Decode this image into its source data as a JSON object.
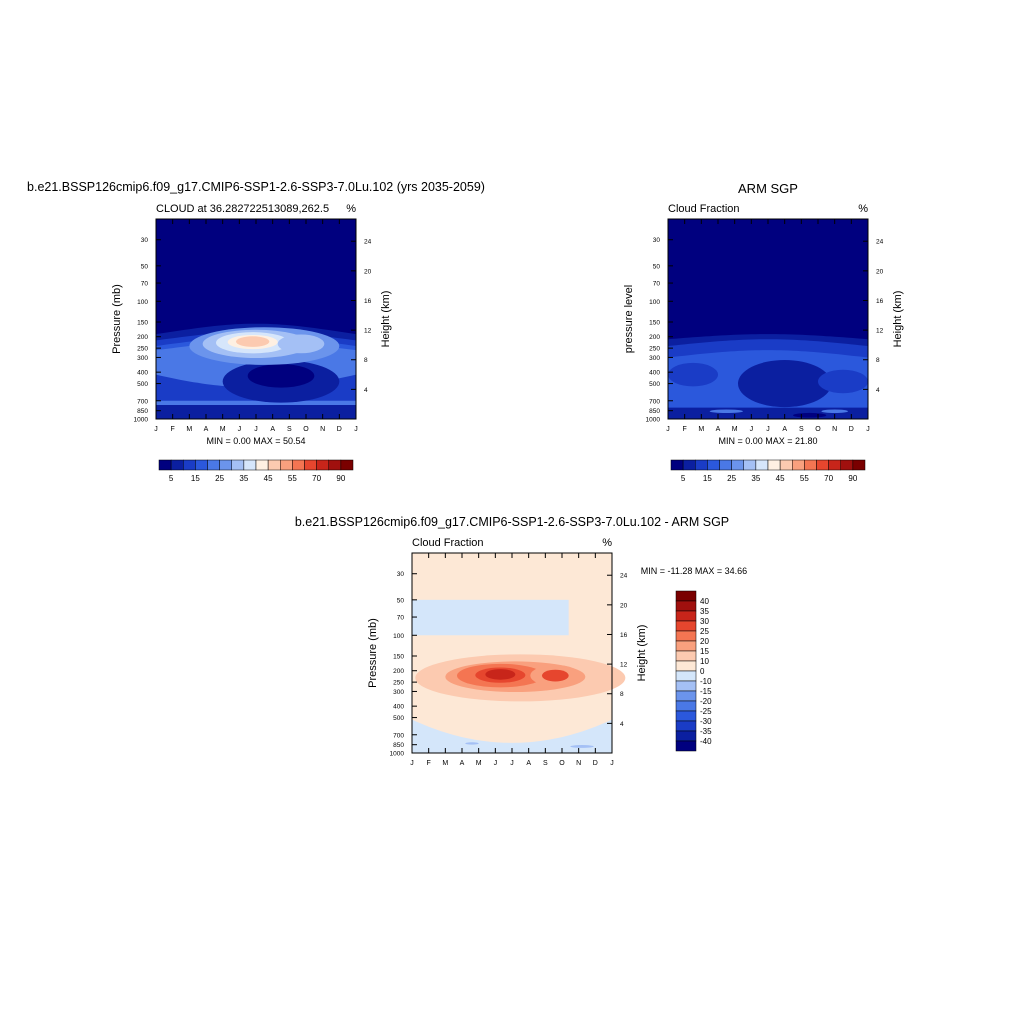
{
  "chart_data": [
    {
      "type": "heatmap",
      "title": "b.e21.BSSP126cmip6.f09_g17.CMIP6-SSP1-2.6-SSP3-7.0Lu.102 (yrs 2035-2059)",
      "subtitle_left": "CLOUD at 36.282722513089,262.5",
      "units": "%",
      "ylabel": "Pressure (mb)",
      "ylabel_right": "Height (km)",
      "stats": "MIN =   0.00 MAX =  50.54",
      "x_ticks": [
        "J",
        "F",
        "M",
        "A",
        "M",
        "J",
        "J",
        "A",
        "S",
        "O",
        "N",
        "D",
        "J"
      ],
      "y_ticks": [
        30,
        50,
        70,
        100,
        150,
        200,
        250,
        300,
        400,
        500,
        700,
        850,
        1000
      ],
      "y_ticks_right": [
        24,
        20,
        16,
        12,
        8,
        4
      ],
      "ylim": [
        1000,
        20
      ],
      "colorbar_labels": [
        "5",
        "15",
        "25",
        "35",
        "45",
        "55",
        "70",
        "90"
      ],
      "colors": [
        "#00007f",
        "#0b1fa0",
        "#1a3cc6",
        "#2b58dc",
        "#4a78e6",
        "#6b94ec",
        "#a4c0f5",
        "#d6e6fb",
        "#fef0e2",
        "#fccab0",
        "#f9a07e",
        "#f47552",
        "#e6462e",
        "#c8251a",
        "#a0100e",
        "#7a0000"
      ],
      "features": [
        {
          "level": "peak",
          "value": 50.54,
          "month": 5.8,
          "pressure": 220
        },
        {
          "level": "secondary",
          "value": 40,
          "month": 8.7,
          "pressure": 230
        }
      ]
    },
    {
      "type": "heatmap",
      "title": "ARM SGP",
      "subtitle_left": "Cloud Fraction",
      "units": "%",
      "ylabel": "pressure level",
      "ylabel_right": "Height (km)",
      "stats": "MIN =   0.00 MAX =  21.80",
      "x_ticks": [
        "J",
        "F",
        "M",
        "A",
        "M",
        "J",
        "J",
        "A",
        "S",
        "O",
        "N",
        "D",
        "J"
      ],
      "y_ticks": [
        30,
        50,
        70,
        100,
        150,
        200,
        250,
        300,
        400,
        500,
        700,
        850,
        1000
      ],
      "y_ticks_right": [
        24,
        20,
        16,
        12,
        8,
        4
      ],
      "ylim": [
        1000,
        20
      ],
      "colorbar_labels": [
        "5",
        "15",
        "25",
        "35",
        "45",
        "55",
        "70",
        "90"
      ],
      "colors": [
        "#00007f",
        "#0b1fa0",
        "#1a3cc6",
        "#2b58dc",
        "#4a78e6",
        "#6b94ec",
        "#a4c0f5",
        "#d6e6fb",
        "#fef0e2",
        "#fccab0",
        "#f9a07e",
        "#f47552",
        "#e6462e",
        "#c8251a",
        "#a0100e",
        "#7a0000"
      ]
    },
    {
      "type": "heatmap",
      "title": "b.e21.BSSP126cmip6.f09_g17.CMIP6-SSP1-2.6-SSP3-7.0Lu.102 - ARM SGP",
      "subtitle_left": "Cloud Fraction",
      "units": "%",
      "ylabel": "Pressure (mb)",
      "ylabel_right": "Height (km)",
      "stats": "MIN = -11.28 MAX =  34.66",
      "x_ticks": [
        "J",
        "F",
        "M",
        "A",
        "M",
        "J",
        "J",
        "A",
        "S",
        "O",
        "N",
        "D",
        "J"
      ],
      "y_ticks": [
        30,
        50,
        70,
        100,
        150,
        200,
        250,
        300,
        400,
        500,
        700,
        850,
        1000
      ],
      "y_ticks_right": [
        24,
        20,
        16,
        12,
        8,
        4
      ],
      "ylim": [
        1000,
        20
      ],
      "colorbar_labels": [
        "40",
        "35",
        "30",
        "25",
        "20",
        "15",
        "10",
        "0",
        "-10",
        "-15",
        "-20",
        "-25",
        "-30",
        "-35",
        "-40"
      ],
      "colors": [
        "#7a0000",
        "#a0100e",
        "#c8251a",
        "#e6462e",
        "#f47552",
        "#f9a07e",
        "#fccab0",
        "#fde8d6",
        "#d4e6fa",
        "#a4c0f5",
        "#6b94ec",
        "#4a78e6",
        "#2b58dc",
        "#1a3cc6",
        "#0b1fa0",
        "#00007f"
      ],
      "features": [
        {
          "level": "peak",
          "value": 34.66,
          "month": 5.3,
          "pressure": 220
        },
        {
          "level": "secondary",
          "value": 25,
          "month": 8.6,
          "pressure": 220
        }
      ]
    }
  ]
}
